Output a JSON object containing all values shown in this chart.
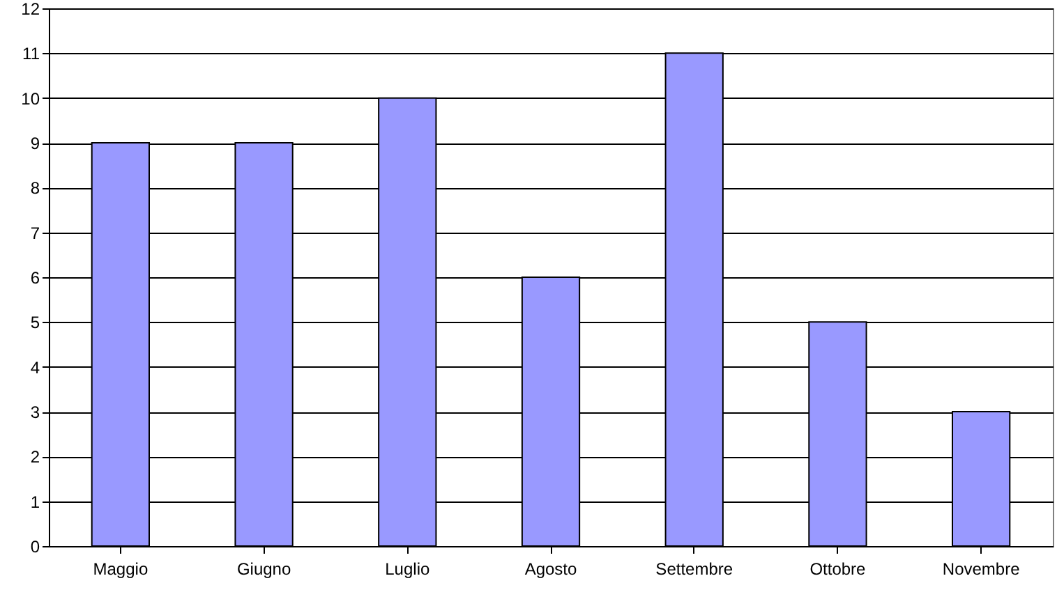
{
  "chart_data": {
    "type": "bar",
    "categories": [
      "Maggio",
      "Giugno",
      "Luglio",
      "Agosto",
      "Settembre",
      "Ottobre",
      "Novembre"
    ],
    "values": [
      9,
      9,
      10,
      6,
      11,
      5,
      3
    ],
    "color": "#9999ff",
    "ylim": [
      0,
      12
    ],
    "yticks": [
      0,
      1,
      2,
      3,
      4,
      5,
      6,
      7,
      8,
      9,
      10,
      11,
      12
    ],
    "grid": "y"
  }
}
